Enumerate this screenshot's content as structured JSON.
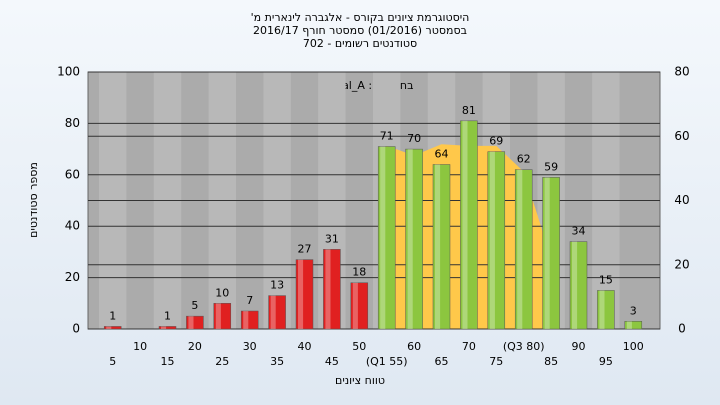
{
  "chart_data": {
    "type": "bar",
    "title": "היסטוגרמת ציונים בקורס - אלגברה לינארית מ'",
    "subtitle": "בסמסטר (01/2016) סמסטר חורף 2016/17",
    "subtitle2": "סטודנטים רשומים - 702",
    "annotation": "בחשיפה : Final_A",
    "ylabel": "מספר סטודנטים",
    "xlabel": "טווח ציונים",
    "categories": [
      "5",
      "10",
      "15",
      "20",
      "25",
      "30",
      "35",
      "40",
      "45",
      "50",
      "(Q1 55)",
      "60",
      "65",
      "70",
      "75",
      "(Q3 80)",
      "85",
      "90",
      "95",
      "100"
    ],
    "values": [
      1,
      0,
      1,
      5,
      10,
      7,
      13,
      27,
      31,
      18,
      71,
      70,
      64,
      81,
      69,
      62,
      59,
      34,
      15,
      3
    ],
    "value_labels": [
      "1",
      null,
      "1",
      "5",
      "10",
      "7",
      "13",
      "27",
      "31",
      "18",
      "71",
      "70",
      "64",
      "81",
      "69",
      "62",
      "59",
      "34",
      "15",
      "3"
    ],
    "colors": [
      "#e02020",
      "#e02020",
      "#e02020",
      "#e02020",
      "#e02020",
      "#e02020",
      "#e02020",
      "#e02020",
      "#e02020",
      "#e02020",
      "#8cc63f",
      "#8cc63f",
      "#8cc63f",
      "#8cc63f",
      "#8cc63f",
      "#8cc63f",
      "#8cc63f",
      "#8cc63f",
      "#8cc63f",
      "#8cc63f"
    ],
    "area": {
      "color": "#ffc84a",
      "axis": "y2",
      "values": [
        null,
        null,
        null,
        null,
        null,
        null,
        null,
        null,
        null,
        null,
        57,
        54,
        57.5,
        57,
        57,
        49,
        22,
        null,
        null,
        null
      ]
    },
    "ylim": [
      0,
      100
    ],
    "yticks": [
      0,
      20,
      40,
      60,
      80,
      100
    ],
    "y2lim": [
      0,
      80
    ],
    "y2ticks": [
      0,
      20,
      40,
      60,
      80
    ],
    "grid": true
  }
}
